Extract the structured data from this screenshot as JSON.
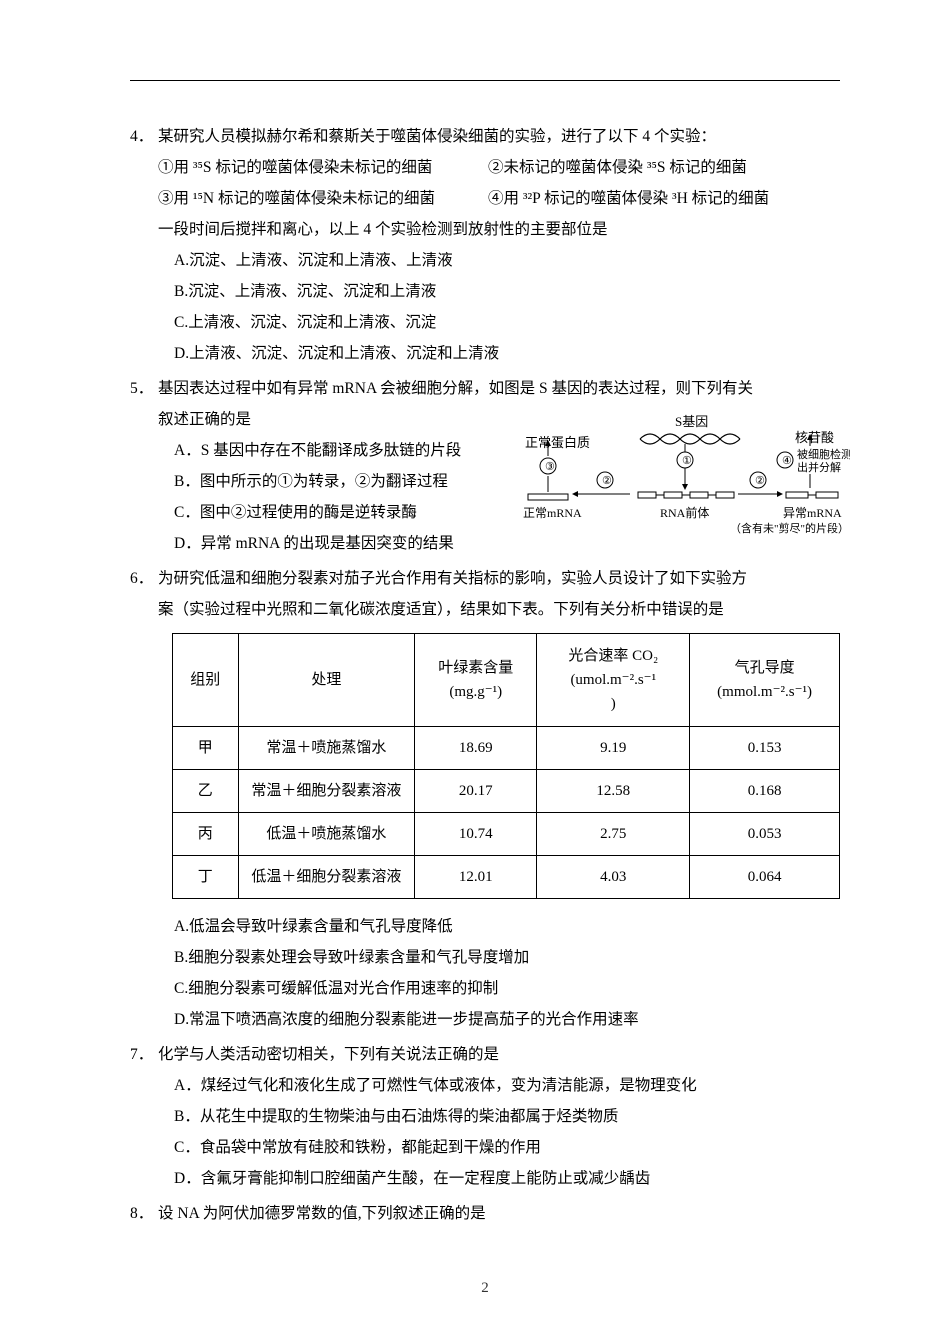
{
  "q4": {
    "num": "4．",
    "stem": "某研究人员模拟赫尔希和蔡斯关于噬菌体侵染细菌的实验，进行了以下 4 个实验：",
    "sub1a": "①用 ³⁵S 标记的噬菌体侵染未标记的细菌",
    "sub1b": "②未标记的噬菌体侵染 ³⁵S 标记的细菌",
    "sub2a": "③用 ¹⁵N 标记的噬菌体侵染未标记的细菌",
    "sub2b": "④用 ³²P 标记的噬菌体侵染 ³H 标记的细菌",
    "line3": "一段时间后搅拌和离心，以上 4 个实验检测到放射性的主要部位是",
    "optA": "A.沉淀、上清液、沉淀和上清液、上清液",
    "optB": "B.沉淀、上清液、沉淀、沉淀和上清液",
    "optC": "C.上清液、沉淀、沉淀和上清液、沉淀",
    "optD": "D.上清液、沉淀、沉淀和上清液、沉淀和上清液"
  },
  "q5": {
    "num": "5．",
    "stem1": "基因表达过程中如有异常 mRNA 会被细胞分解，如图是 S 基因的表达过程，则下列有关",
    "stem2": "叙述正确的是",
    "optA": "A．S 基因中存在不能翻译成多肽链的片段",
    "optB": "B．图中所示的①为转录，②为翻译过程",
    "optC": "C．图中②过程使用的酶是逆转录酶",
    "optD": "D．异常 mRNA 的出现是基因突变的结果"
  },
  "diagram": {
    "l_protein": "正常蛋白质",
    "l_mrna": "正常mRNA",
    "s_gene": "S基因",
    "rna_pre": "RNA前体",
    "nucleic": "核苷酸",
    "detect1": "被细胞检测",
    "detect2": "出并分解",
    "ab_mrna": "异常mRNA",
    "note": "（含有未\"剪尽\"的片段）",
    "c1": "①",
    "c2": "②",
    "c3": "③",
    "c4": "④"
  },
  "q6": {
    "num": "6．",
    "stem1": "为研究低温和细胞分裂素对茄子光合作用有关指标的影响，实验人员设计了如下实验方",
    "stem2": "案（实验过程中光照和二氧化碳浓度适宜），结果如下表。下列有关分析中错误的是",
    "table": {
      "headers": {
        "group": "组别",
        "treat": "处理",
        "chl_l1": "叶绿素含量",
        "chl_l2": "(mg.g⁻¹)",
        "ps_l1": "光合速率 CO₂",
        "ps_l2": "(umol.m⁻².s⁻¹",
        "ps_l3": ")",
        "sc_l1": "气孔导度",
        "sc_l2": "(mmol.m⁻².s⁻¹)"
      },
      "rows": [
        {
          "g": "甲",
          "t": "常温＋喷施蒸馏水",
          "c": "18.69",
          "p": "9.19",
          "s": "0.153"
        },
        {
          "g": "乙",
          "t": "常温＋细胞分裂素溶液",
          "c": "20.17",
          "p": "12.58",
          "s": "0.168"
        },
        {
          "g": "丙",
          "t": "低温＋喷施蒸馏水",
          "c": "10.74",
          "p": "2.75",
          "s": "0.053"
        },
        {
          "g": "丁",
          "t": "低温＋细胞分裂素溶液",
          "c": "12.01",
          "p": "4.03",
          "s": "0.064"
        }
      ],
      "col_widths": [
        "70px",
        "200px",
        "130px",
        "160px",
        "155px"
      ]
    },
    "optA": "A.低温会导致叶绿素含量和气孔导度降低",
    "optB": "B.细胞分裂素处理会导致叶绿素含量和气孔导度增加",
    "optC": "C.细胞分裂素可缓解低温对光合作用速率的抑制",
    "optD": "D.常温下喷洒高浓度的细胞分裂素能进一步提高茄子的光合作用速率"
  },
  "q7": {
    "num": "7．",
    "stem": "化学与人类活动密切相关，下列有关说法正确的是",
    "optA": "A．煤经过气化和液化生成了可燃性气体或液体，变为清洁能源，是物理变化",
    "optB": "B．从花生中提取的生物柴油与由石油炼得的柴油都属于烃类物质",
    "optC": "C．食品袋中常放有硅胶和铁粉，都能起到干燥的作用",
    "optD": "D．含氟牙膏能抑制口腔细菌产生酸，在一定程度上能防止或减少龋齿"
  },
  "q8": {
    "num": "8．",
    "stem": "设 NA 为阿伏加德罗常数的值,下列叙述正确的是"
  },
  "page_number": "2"
}
